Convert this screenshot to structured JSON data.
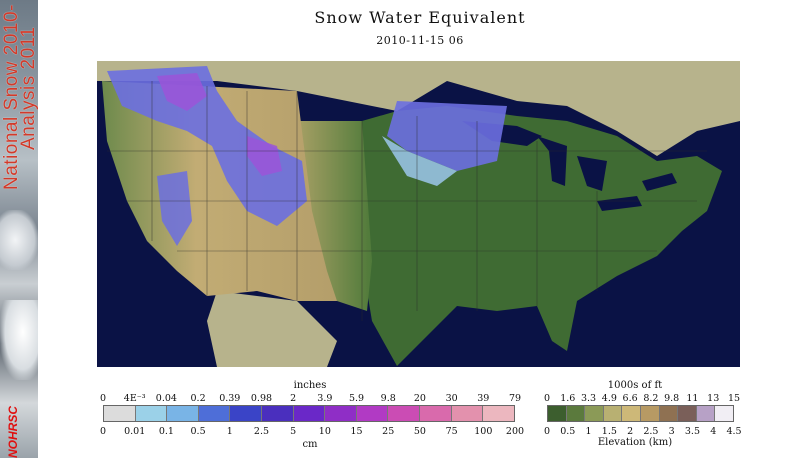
{
  "title": "Snow Water Equivalent",
  "timestamp": "2010-11-15 06",
  "sidebar": {
    "title_line1": "National Snow 2010-",
    "title_line2": "Analysis 2011",
    "logo_text": "NOHRSC"
  },
  "map": {
    "region": "Contiguous United States",
    "colors": {
      "ocean": "#0a1245",
      "great_lakes": "#0a1245",
      "canada_mexico": "#b7b38c",
      "lowland": "#3f6b33",
      "midland": "#7a8a4f",
      "highland": "#c2ac74",
      "snow_light": "#6b6fe0",
      "snow_heavy": "#9b55d8",
      "snow_thin": "#9cc7ec"
    }
  },
  "swe_legend": {
    "units_top": "inches",
    "units_bottom": "cm",
    "inch_ticks": [
      "0",
      "4E⁻³",
      "0.04",
      "0.2",
      "0.39",
      "0.98",
      "2",
      "3.9",
      "5.9",
      "9.8",
      "20",
      "30",
      "39",
      "79"
    ],
    "cm_ticks": [
      "0",
      "0.01",
      "0.1",
      "0.5",
      "1",
      "2.5",
      "5",
      "10",
      "15",
      "25",
      "50",
      "75",
      "100",
      "200"
    ],
    "colors": [
      "#dcdcdc",
      "#9bd1e8",
      "#79b4e6",
      "#4e6ed8",
      "#3a44c7",
      "#4a2fbe",
      "#6a28c8",
      "#8f2ec6",
      "#b13ac4",
      "#cb4cb4",
      "#d96aac",
      "#e391ad",
      "#ecb7bf"
    ]
  },
  "elev_legend": {
    "units_top": "1000s of ft",
    "units_bottom": "Elevation (km)",
    "ft_ticks": [
      "0",
      "1.6",
      "3.3",
      "4.9",
      "6.6",
      "8.2",
      "9.8",
      "11",
      "13",
      "15"
    ],
    "km_ticks": [
      "0",
      "0.5",
      "1",
      "1.5",
      "2",
      "2.5",
      "3",
      "3.5",
      "4",
      "4.5"
    ],
    "colors": [
      "#3c5e2e",
      "#5b7a3d",
      "#8b9a57",
      "#b8b072",
      "#cdb878",
      "#b79a64",
      "#8f7152",
      "#7a5f59",
      "#b7a1c6",
      "#f1eef4"
    ]
  }
}
